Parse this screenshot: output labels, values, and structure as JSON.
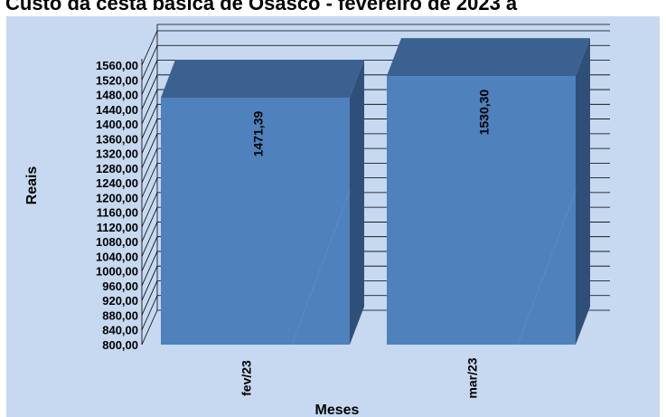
{
  "chart_data": {
    "type": "bar",
    "title": "Custo da cesta básica de Osasco - fevereiro de 2023 a",
    "xlabel": "Meses",
    "ylabel": "Reais",
    "categories": [
      "fev/23",
      "mar/23"
    ],
    "series": [
      {
        "values": [
          1471.39,
          1530.3
        ]
      }
    ],
    "data_labels": [
      "1471,39",
      "1530,30"
    ],
    "ylim": [
      800,
      1560
    ],
    "ystep": 40,
    "y_tick_labels": [
      "800,00",
      "840,00",
      "880,00",
      "920,00",
      "960,00",
      "1000,00",
      "1040,00",
      "1080,00",
      "1120,00",
      "1160,00",
      "1200,00",
      "1240,00",
      "1280,00",
      "1320,00",
      "1360,00",
      "1400,00",
      "1440,00",
      "1480,00",
      "1520,00",
      "1560,00"
    ],
    "grid": true,
    "legend": "none",
    "style": "3d-column",
    "colors": {
      "background": "#c6d9f1",
      "bar_front": "#4f81bd",
      "bar_top": "#3b6190",
      "bar_side": "#2f4f79",
      "grid": "#000000"
    }
  }
}
